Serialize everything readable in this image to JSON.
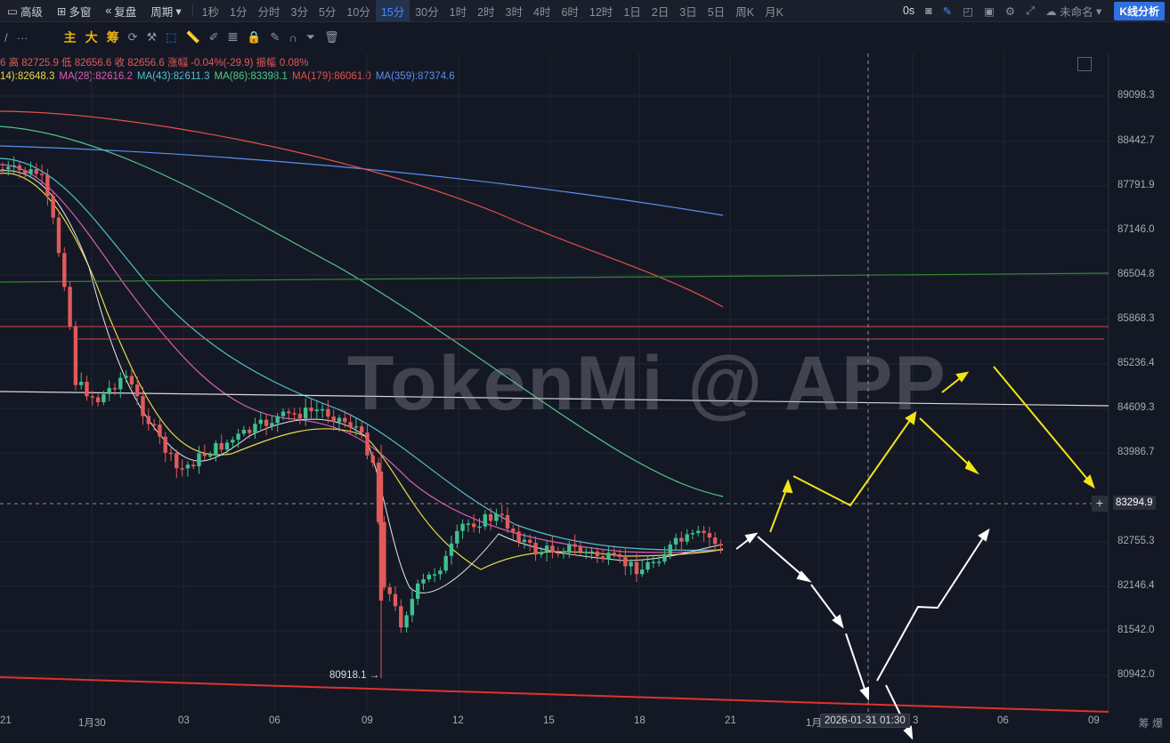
{
  "topbar": {
    "left_items": [
      "高级",
      "多窗",
      "复盘",
      "周期"
    ],
    "intervals": [
      "1秒",
      "1分",
      "分时",
      "3分",
      "5分",
      "10分",
      "15分",
      "30分",
      "1时",
      "2时",
      "3时",
      "4时",
      "6时",
      "12时",
      "1日",
      "2日",
      "3日",
      "5日",
      "周K",
      "月K"
    ],
    "active_interval": "15分",
    "right_countdown": "0s",
    "layout_name": "未命名",
    "kline_button": "K线分析"
  },
  "toolbar": {
    "more": "···",
    "zhu": "主",
    "da": "大",
    "chou": "筹"
  },
  "ohlc": "6 高 82725.9 低 82656.6 收 82656.6 涨幅 -0.04%(-29.9) 振幅 0.08%",
  "ma": [
    {
      "label": "14):82648.3",
      "color": "#e8d84a"
    },
    {
      "label": "MA(28):82616.2",
      "color": "#d85fb0"
    },
    {
      "label": "MA(43):82611.3",
      "color": "#4fc0d0"
    },
    {
      "label": "MA(86):83398.1",
      "color": "#52c78a"
    },
    {
      "label": "MA(179):86061.0",
      "color": "#e0504a"
    },
    {
      "label": "MA(359):87374.6",
      "color": "#5b8ff0"
    }
  ],
  "y_axis": [
    "89098.3",
    "88442.7",
    "87791.9",
    "87146.0",
    "86504.8",
    "85868.3",
    "85236.4",
    "84609.3",
    "83986.7",
    "83294.9",
    "82755.3",
    "82146.4",
    "81542.0",
    "80942.0"
  ],
  "x_axis": [
    "21",
    "1月30",
    "03",
    "06",
    "09",
    "12",
    "15",
    "18",
    "21",
    "1月",
    "3",
    "06",
    "09"
  ],
  "crosshair_time": "2026-01-31 01:30",
  "crosshair_price": "83294.9",
  "min_label": "80918.1",
  "watermark": "TokenMi @ APP",
  "corner": "筹 爆",
  "colors": {
    "up": "#3fbf8f",
    "down": "#e05a5a",
    "accent": "#2f6fe0"
  }
}
